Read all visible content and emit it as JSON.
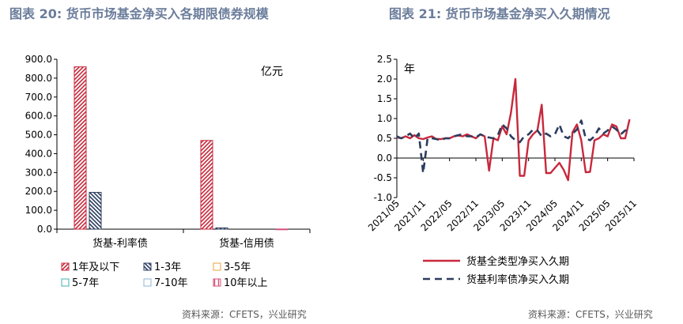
{
  "left": {
    "title": "图表 20: 货币市场基金净买入各期限债券规模",
    "source": "资料来源：CFETS，兴业研究",
    "unit_label": "亿元"
  },
  "right": {
    "title": "图表 21: 货币市场基金净买入久期情况",
    "source": "资料来源：CFETS，兴业研究",
    "unit_label": "年"
  },
  "colors": {
    "red": "#c8283c",
    "navy": "#2b3d5e",
    "orange": "#e8a33d",
    "teal": "#3fb3b0",
    "lightblue": "#8fb4d9",
    "pink": "#d4507a",
    "title": "#6b7d9b"
  },
  "chart_data": [
    {
      "type": "bar",
      "title": "",
      "unit": "亿元",
      "categories": [
        "货基-利率债",
        "货基-信用债"
      ],
      "series": [
        {
          "name": "1年及以下",
          "values": [
            860,
            470
          ],
          "color": "#c8283c",
          "pattern": "diag-right"
        },
        {
          "name": "1-3年",
          "values": [
            195,
            7
          ],
          "color": "#2b3d5e",
          "pattern": "diag-left"
        },
        {
          "name": "3-5年",
          "values": [
            0,
            0
          ],
          "color": "#e8a33d",
          "pattern": "none"
        },
        {
          "name": "5-7年",
          "values": [
            0,
            0
          ],
          "color": "#3fb3b0",
          "pattern": "none"
        },
        {
          "name": "7-10年",
          "values": [
            0,
            0
          ],
          "color": "#8fb4d9",
          "pattern": "none"
        },
        {
          "name": "10年以上",
          "values": [
            0,
            1
          ],
          "color": "#d4507a",
          "pattern": "vertical"
        }
      ],
      "ylim": [
        0,
        900
      ],
      "yticks": [
        "0.0",
        "100.0",
        "200.0",
        "300.0",
        "400.0",
        "500.0",
        "600.0",
        "700.0",
        "800.0",
        "900.0"
      ],
      "legend_position": "bottom"
    },
    {
      "type": "line",
      "title": "",
      "unit": "年",
      "xticks": [
        "2021/05",
        "2021/11",
        "2022/05",
        "2022/11",
        "2023/05",
        "2023/11",
        "2024/05",
        "2024/11",
        "2025/05",
        "2025/11"
      ],
      "ylim": [
        -1.0,
        2.5
      ],
      "yticks": [
        "-1.0",
        "-0.5",
        "0.0",
        "0.5",
        "1.0",
        "1.5",
        "2.0",
        "2.5"
      ],
      "legend_position": "bottom",
      "series": [
        {
          "name": "货基全类型净买入久期",
          "color": "#c8283c",
          "dash": "solid",
          "points": [
            [
              "2021-05",
              0.52
            ],
            [
              "2021-06",
              0.5
            ],
            [
              "2021-07",
              0.55
            ],
            [
              "2021-08",
              0.5
            ],
            [
              "2021-09",
              0.58
            ],
            [
              "2021-10",
              0.5
            ],
            [
              "2021-11",
              0.48
            ],
            [
              "2021-12",
              0.52
            ],
            [
              "2022-01",
              0.55
            ],
            [
              "2022-02",
              0.48
            ],
            [
              "2022-03",
              0.48
            ],
            [
              "2022-04",
              0.5
            ],
            [
              "2022-05",
              0.5
            ],
            [
              "2022-06",
              0.55
            ],
            [
              "2022-07",
              0.57
            ],
            [
              "2022-08",
              0.55
            ],
            [
              "2022-09",
              0.6
            ],
            [
              "2022-10",
              0.55
            ],
            [
              "2022-11",
              0.5
            ],
            [
              "2022-12",
              0.6
            ],
            [
              "2023-01",
              0.55
            ],
            [
              "2023-02",
              -0.32
            ],
            [
              "2023-03",
              0.5
            ],
            [
              "2023-04",
              0.45
            ],
            [
              "2023-05",
              0.8
            ],
            [
              "2023-06",
              0.6
            ],
            [
              "2023-07",
              1.15
            ],
            [
              "2023-08",
              2.0
            ],
            [
              "2023-09",
              -0.45
            ],
            [
              "2023-10",
              -0.45
            ],
            [
              "2023-11",
              0.45
            ],
            [
              "2023-12",
              0.6
            ],
            [
              "2024-01",
              0.7
            ],
            [
              "2024-02",
              1.35
            ],
            [
              "2024-03",
              -0.38
            ],
            [
              "2024-04",
              -0.38
            ],
            [
              "2024-05",
              -0.25
            ],
            [
              "2024-06",
              -0.12
            ],
            [
              "2024-07",
              -0.3
            ],
            [
              "2024-08",
              -0.56
            ],
            [
              "2024-09",
              0.65
            ],
            [
              "2024-10",
              0.85
            ],
            [
              "2024-11",
              0.45
            ],
            [
              "2024-12",
              -0.36
            ],
            [
              "2025-01",
              -0.35
            ],
            [
              "2025-02",
              0.45
            ],
            [
              "2025-03",
              0.5
            ],
            [
              "2025-04",
              0.6
            ],
            [
              "2025-05",
              0.55
            ],
            [
              "2025-06",
              0.85
            ],
            [
              "2025-07",
              0.8
            ],
            [
              "2025-08",
              0.5
            ],
            [
              "2025-09",
              0.5
            ],
            [
              "2025-10",
              0.98
            ]
          ]
        },
        {
          "name": "货基利率债净买入久期",
          "color": "#2b3d5e",
          "dash": "dashed",
          "points": [
            [
              "2021-05",
              0.55
            ],
            [
              "2021-06",
              0.5
            ],
            [
              "2021-07",
              0.55
            ],
            [
              "2021-08",
              0.62
            ],
            [
              "2021-09",
              0.5
            ],
            [
              "2021-10",
              0.62
            ],
            [
              "2021-11",
              -0.38
            ],
            [
              "2021-12",
              0.5
            ],
            [
              "2022-01",
              0.5
            ],
            [
              "2022-02",
              0.48
            ],
            [
              "2022-03",
              0.45
            ],
            [
              "2022-04",
              0.5
            ],
            [
              "2022-05",
              0.5
            ],
            [
              "2022-06",
              0.55
            ],
            [
              "2022-07",
              0.58
            ],
            [
              "2022-08",
              0.6
            ],
            [
              "2022-09",
              0.55
            ],
            [
              "2022-10",
              0.55
            ],
            [
              "2022-11",
              0.52
            ],
            [
              "2022-12",
              0.6
            ],
            [
              "2023-01",
              0.55
            ],
            [
              "2023-02",
              0.52
            ],
            [
              "2023-03",
              0.5
            ],
            [
              "2023-04",
              0.58
            ],
            [
              "2023-05",
              0.85
            ],
            [
              "2023-06",
              0.75
            ],
            [
              "2023-07",
              0.55
            ],
            [
              "2023-08",
              0.45
            ],
            [
              "2023-09",
              0.4
            ],
            [
              "2023-10",
              0.55
            ],
            [
              "2023-11",
              0.6
            ],
            [
              "2023-12",
              0.72
            ],
            [
              "2024-01",
              0.7
            ],
            [
              "2024-02",
              0.55
            ],
            [
              "2024-03",
              0.62
            ],
            [
              "2024-04",
              0.55
            ],
            [
              "2024-05",
              0.6
            ],
            [
              "2024-06",
              0.85
            ],
            [
              "2024-07",
              0.55
            ],
            [
              "2024-08",
              0.5
            ],
            [
              "2024-09",
              0.62
            ],
            [
              "2024-10",
              0.72
            ],
            [
              "2024-11",
              0.95
            ],
            [
              "2024-12",
              0.5
            ],
            [
              "2025-01",
              0.45
            ],
            [
              "2025-02",
              0.55
            ],
            [
              "2025-03",
              0.75
            ],
            [
              "2025-04",
              0.62
            ],
            [
              "2025-05",
              0.7
            ],
            [
              "2025-06",
              0.8
            ],
            [
              "2025-07",
              0.72
            ],
            [
              "2025-08",
              0.6
            ],
            [
              "2025-09",
              0.7
            ],
            [
              "2025-10",
              0.7
            ]
          ]
        }
      ]
    }
  ]
}
